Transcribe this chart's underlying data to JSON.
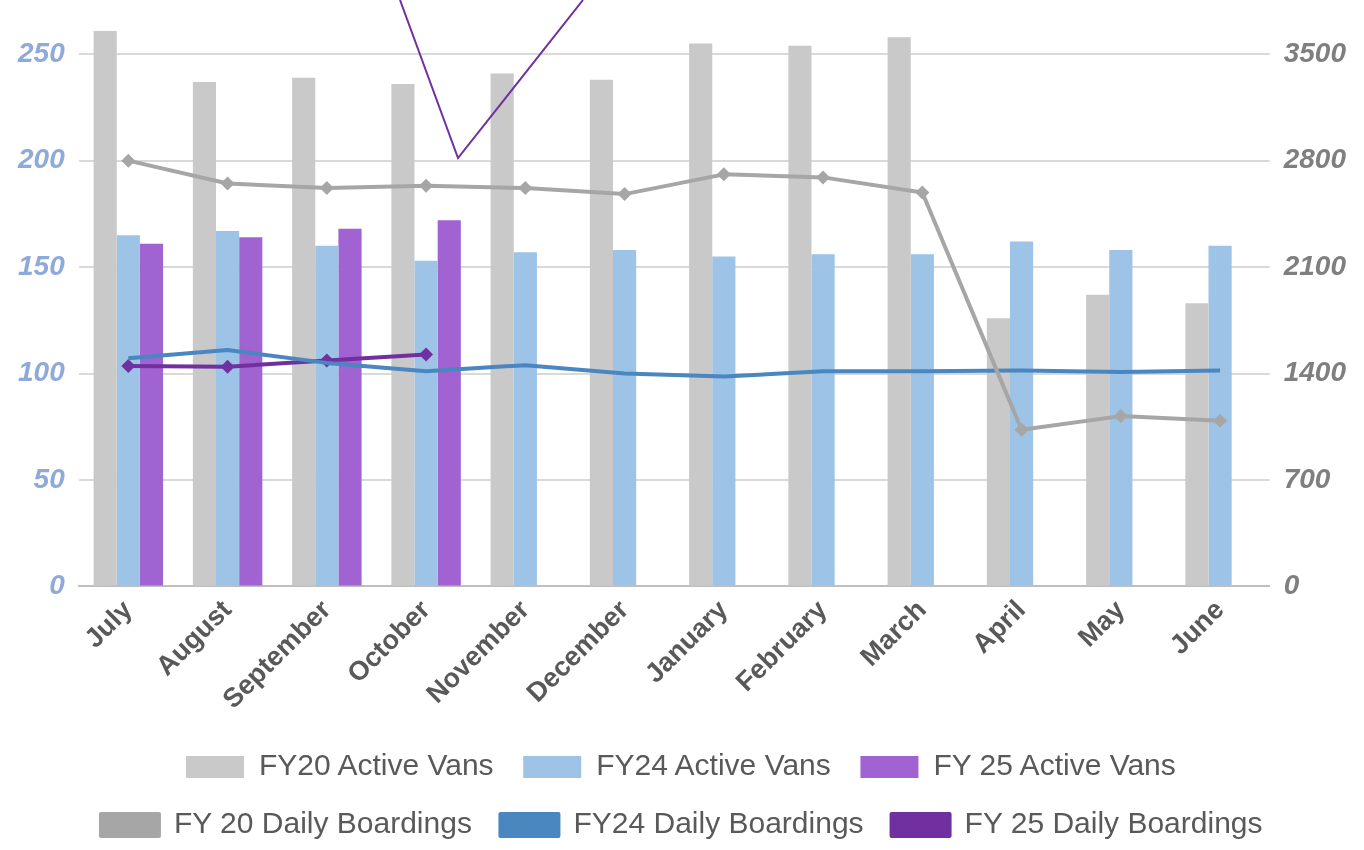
{
  "chart_data": {
    "type": "bar",
    "categories": [
      "July",
      "August",
      "September",
      "October",
      "November",
      "December",
      "January",
      "February",
      "March",
      "April",
      "May",
      "June"
    ],
    "series": [
      {
        "name": "FY20 Active Vans",
        "color": "#c9c9c9",
        "values": [
          261,
          237,
          239,
          236,
          241,
          238,
          255,
          254,
          258,
          126,
          137,
          133
        ]
      },
      {
        "name": "FY24 Active Vans",
        "color": "#9dc3e6",
        "values": [
          165,
          167,
          160,
          153,
          157,
          158,
          155,
          156,
          156,
          162,
          158,
          160
        ]
      },
      {
        "name": "FY 25 Active Vans",
        "color": "#a162d2",
        "values": [
          161,
          164,
          168,
          172,
          null,
          null,
          null,
          null,
          null,
          null,
          null,
          null
        ]
      },
      {
        "name": "FY 20 Daily Boardings",
        "type": "line",
        "axis": "y2",
        "color": "#a6a6a6",
        "marker": "diamond",
        "values": [
          2800,
          2650,
          2620,
          2635,
          2620,
          2580,
          2710,
          2690,
          2590,
          1030,
          1120,
          1090
        ]
      },
      {
        "name": "FY24 Daily Boardings",
        "type": "line",
        "axis": "y2",
        "color": "#4a86c0",
        "marker": "none",
        "values": [
          1500,
          1555,
          1470,
          1415,
          1455,
          1400,
          1380,
          1415,
          1415,
          1420,
          1410,
          1420
        ]
      },
      {
        "name": "FY 25 Daily Boardings",
        "type": "line",
        "axis": "y2",
        "color": "#7030a0",
        "marker": "diamond",
        "values": [
          1450,
          1445,
          1485,
          1525,
          null,
          null,
          null,
          null,
          null,
          null,
          null,
          null
        ]
      }
    ],
    "ylim": [
      0,
      261
    ],
    "yticks": [
      0,
      50,
      100,
      150,
      200,
      250
    ],
    "y2lim": [
      0,
      3654
    ],
    "y2ticks": [
      0,
      700,
      1400,
      2100,
      2800,
      3500
    ],
    "grid": "y",
    "legend": "bottom"
  }
}
